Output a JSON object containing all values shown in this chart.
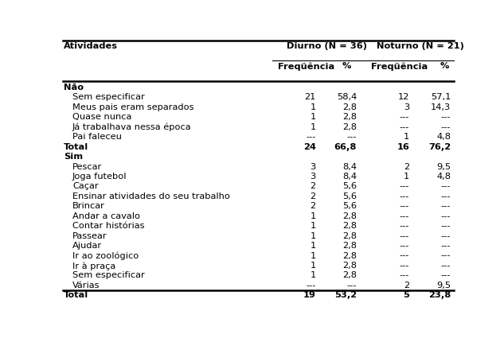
{
  "col_header_1": "Atividades",
  "col_header_2": "Diurno (N = 36)",
  "col_header_3": "Noturno (N = 21)",
  "sub_headers": [
    "Freqüência",
    "%",
    "Freqüência",
    "%"
  ],
  "sections": [
    {
      "label": "Não",
      "rows": [
        {
          "activity": "Sem especificar",
          "d_freq": "21",
          "d_pct": "58,4",
          "n_freq": "12",
          "n_pct": "57,1"
        },
        {
          "activity": "Meus pais eram separados",
          "d_freq": "1",
          "d_pct": "2,8",
          "n_freq": "3",
          "n_pct": "14,3"
        },
        {
          "activity": "Quase nunca",
          "d_freq": "1",
          "d_pct": "2,8",
          "n_freq": "---",
          "n_pct": "---"
        },
        {
          "activity": "Já trabalhava nessa época",
          "d_freq": "1",
          "d_pct": "2,8",
          "n_freq": "---",
          "n_pct": "---"
        },
        {
          "activity": "Pai faleceu",
          "d_freq": "---",
          "d_pct": "---",
          "n_freq": "1",
          "n_pct": "4,8"
        }
      ],
      "total": {
        "label": "Total",
        "d_freq": "24",
        "d_pct": "66,8",
        "n_freq": "16",
        "n_pct": "76,2"
      }
    },
    {
      "label": "Sim",
      "rows": [
        {
          "activity": "Pescar",
          "d_freq": "3",
          "d_pct": "8,4",
          "n_freq": "2",
          "n_pct": "9,5"
        },
        {
          "activity": "Joga futebol",
          "d_freq": "3",
          "d_pct": "8,4",
          "n_freq": "1",
          "n_pct": "4,8"
        },
        {
          "activity": "Caçar",
          "d_freq": "2",
          "d_pct": "5,6",
          "n_freq": "---",
          "n_pct": "---"
        },
        {
          "activity": "Ensinar atividades do seu trabalho",
          "d_freq": "2",
          "d_pct": "5,6",
          "n_freq": "---",
          "n_pct": "---"
        },
        {
          "activity": "Brincar",
          "d_freq": "2",
          "d_pct": "5,6",
          "n_freq": "---",
          "n_pct": "---"
        },
        {
          "activity": "Andar a cavalo",
          "d_freq": "1",
          "d_pct": "2,8",
          "n_freq": "---",
          "n_pct": "---"
        },
        {
          "activity": "Contar histórias",
          "d_freq": "1",
          "d_pct": "2,8",
          "n_freq": "---",
          "n_pct": "---"
        },
        {
          "activity": "Passear",
          "d_freq": "1",
          "d_pct": "2,8",
          "n_freq": "---",
          "n_pct": "---"
        },
        {
          "activity": "Ajudar",
          "d_freq": "1",
          "d_pct": "2,8",
          "n_freq": "---",
          "n_pct": "---"
        },
        {
          "activity": "Ir ao zoológico",
          "d_freq": "1",
          "d_pct": "2,8",
          "n_freq": "---",
          "n_pct": "---"
        },
        {
          "activity": "Ir à praça",
          "d_freq": "1",
          "d_pct": "2,8",
          "n_freq": "---",
          "n_pct": "---"
        },
        {
          "activity": "Sem especificar",
          "d_freq": "1",
          "d_pct": "2,8",
          "n_freq": "---",
          "n_pct": "---"
        },
        {
          "activity": "Várias",
          "d_freq": "---",
          "d_pct": "---",
          "n_freq": "2",
          "n_pct": "9,5"
        }
      ],
      "total": {
        "label": "Total",
        "d_freq": "19",
        "d_pct": "53,2",
        "n_freq": "5",
        "n_pct": "23,8"
      }
    }
  ],
  "bg_color": "#ffffff",
  "font_size": 8.2
}
